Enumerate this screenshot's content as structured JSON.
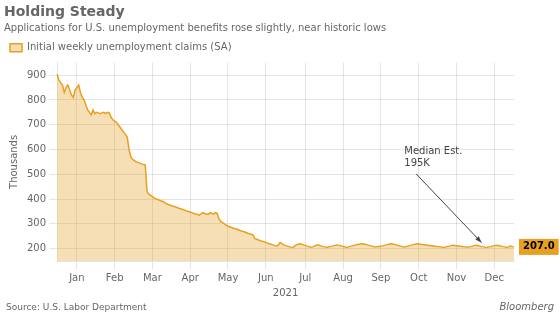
{
  "chart_data": {
    "type": "area",
    "title": "Holding Steady",
    "subtitle": "Applications for U.S. unemployment benefits rose slightly, near historic lows",
    "x_label": "2021",
    "y_label": "Thousands",
    "source": "Source: U.S. Labor Department",
    "watermark": "Bloomberg",
    "categories": [
      null,
      null,
      null,
      null,
      null,
      null,
      null,
      null,
      null,
      null,
      null,
      "Jan",
      null,
      null,
      null,
      null,
      null,
      null,
      null,
      null,
      null,
      null,
      null,
      null,
      null,
      null,
      null,
      null,
      null,
      null,
      null,
      null,
      "Feb",
      null,
      null,
      null,
      null,
      null,
      null,
      null,
      null,
      null,
      null,
      null,
      null,
      null,
      null,
      null,
      null,
      null,
      null,
      null,
      null,
      "Mar",
      null,
      null,
      null,
      null,
      null,
      null,
      null,
      null,
      null,
      null,
      null,
      null,
      null,
      null,
      null,
      null,
      null,
      null,
      null,
      null,
      "Apr",
      null,
      null,
      null,
      null,
      null,
      null,
      null,
      null,
      null,
      null,
      null,
      null,
      null,
      null,
      null,
      null,
      null,
      null,
      null,
      null,
      "May",
      null,
      null,
      null,
      null,
      null,
      null,
      null,
      null,
      null,
      null,
      null,
      null,
      null,
      null,
      null,
      null,
      null,
      null,
      null,
      null,
      "Jun",
      null,
      null,
      null,
      null,
      null,
      null,
      null,
      null,
      null,
      null,
      null,
      null,
      null,
      null,
      null,
      null,
      null,
      null,
      null,
      null,
      null,
      "Jul",
      null,
      null,
      null,
      null,
      null,
      null,
      null,
      null,
      null,
      null,
      null,
      null,
      null,
      null,
      null,
      null,
      null,
      null,
      null,
      null,
      "Aug",
      null,
      null,
      null,
      null,
      null,
      null,
      null,
      null,
      null,
      null,
      null,
      null,
      null,
      null,
      null,
      null,
      null,
      null,
      null,
      null,
      "Sep",
      null,
      null,
      null,
      null,
      null,
      null,
      null,
      null,
      null,
      null,
      null,
      null,
      null,
      null,
      null,
      null,
      null,
      null,
      null,
      null,
      "Oct",
      null,
      null,
      null,
      null,
      null,
      null,
      null,
      null,
      null,
      null,
      null,
      null,
      null,
      null,
      null,
      null,
      null,
      null,
      null,
      null,
      "Nov",
      null,
      null,
      null,
      null,
      null,
      null,
      null,
      null,
      null,
      null,
      null,
      null,
      null,
      null,
      null,
      null,
      null,
      null,
      null,
      null,
      "Dec",
      null,
      null,
      null,
      null,
      null,
      null,
      null,
      null,
      null,
      null,
      null
    ],
    "series": [
      {
        "name": "Initial weekly unemployment claims (SA)",
        "color": "#E8A020",
        "values": [
          905,
          880,
          870,
          860,
          830,
          850,
          860,
          840,
          820,
          810,
          840,
          850,
          860,
          830,
          810,
          800,
          780,
          760,
          750,
          740,
          760,
          745,
          750,
          748,
          745,
          748,
          750,
          745,
          750,
          748,
          730,
          720,
          715,
          710,
          700,
          690,
          680,
          670,
          660,
          650,
          600,
          570,
          560,
          555,
          550,
          548,
          545,
          542,
          540,
          538,
          430,
          420,
          415,
          410,
          405,
          400,
          398,
          395,
          392,
          390,
          385,
          380,
          378,
          375,
          372,
          370,
          368,
          365,
          362,
          360,
          358,
          355,
          352,
          350,
          348,
          345,
          342,
          340,
          338,
          335,
          340,
          345,
          342,
          340,
          338,
          345,
          342,
          340,
          345,
          342,
          320,
          310,
          305,
          300,
          295,
          290,
          288,
          285,
          282,
          280,
          278,
          275,
          272,
          270,
          268,
          265,
          262,
          260,
          258,
          255,
          240,
          238,
          235,
          232,
          230,
          228,
          225,
          222,
          220,
          218,
          215,
          212,
          210,
          215,
          225,
          220,
          215,
          212,
          210,
          208,
          206,
          205,
          210,
          215,
          218,
          220,
          218,
          215,
          213,
          210,
          208,
          206,
          207,
          210,
          213,
          215,
          213,
          210,
          208,
          207,
          205,
          207,
          209,
          210,
          212,
          214,
          215,
          213,
          211,
          209,
          207,
          205,
          207,
          209,
          211,
          213,
          215,
          217,
          218,
          219,
          220,
          218,
          216,
          214,
          212,
          210,
          208,
          207,
          208,
          209,
          210,
          211,
          213,
          215,
          217,
          219,
          220,
          218,
          216,
          214,
          212,
          210,
          208,
          207,
          208,
          210,
          212,
          214,
          216,
          218,
          219,
          220,
          218,
          217,
          216,
          215,
          214,
          213,
          212,
          211,
          210,
          209,
          208,
          207,
          206,
          205,
          207,
          209,
          210,
          212,
          214,
          213,
          212,
          211,
          210,
          209,
          208,
          207,
          206,
          207,
          208,
          210,
          212,
          214,
          213,
          210,
          208,
          207,
          206,
          205,
          207,
          208,
          210,
          212,
          214,
          213,
          212,
          210,
          208,
          207,
          205,
          207,
          210,
          208,
          207
        ]
      }
    ],
    "ylim": [
      150,
      950
    ],
    "yticks": [
      200,
      300,
      400,
      500,
      600,
      700,
      800,
      900
    ],
    "grid": true,
    "legend": "top-left",
    "annotations": [
      {
        "text": "Median Est.\n195K"
      },
      {
        "text": "207.0",
        "value": 207
      }
    ]
  }
}
